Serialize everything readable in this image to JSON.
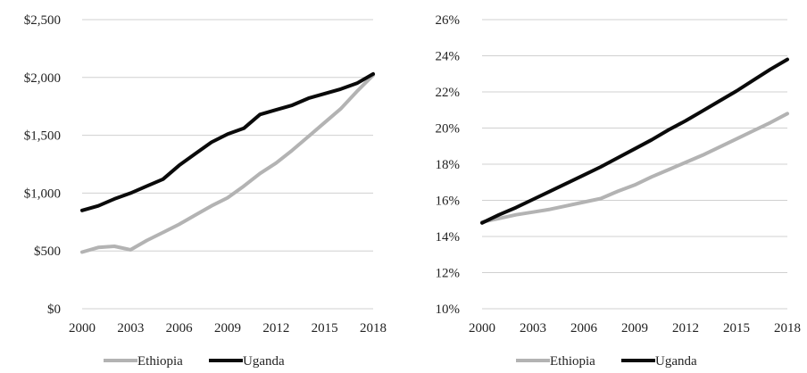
{
  "chart_data": [
    {
      "type": "line",
      "x": [
        2000,
        2001,
        2002,
        2003,
        2004,
        2005,
        2006,
        2007,
        2008,
        2009,
        2010,
        2011,
        2012,
        2013,
        2014,
        2015,
        2016,
        2017,
        2018
      ],
      "x_ticks": [
        "2000",
        "2003",
        "2006",
        "2009",
        "2012",
        "2015",
        "2018"
      ],
      "y_ticks": [
        "$0",
        "$500",
        "$1,000",
        "$1,500",
        "$2,000",
        "$2,500"
      ],
      "ylim": [
        0,
        2500
      ],
      "grid": true,
      "legend_position": "bottom",
      "series": [
        {
          "name": "Ethiopia",
          "color": "#b3b3b3",
          "values": [
            490,
            530,
            540,
            510,
            590,
            660,
            730,
            810,
            890,
            960,
            1060,
            1170,
            1260,
            1370,
            1490,
            1610,
            1730,
            1880,
            2020
          ]
        },
        {
          "name": "Uganda",
          "color": "#0a0a0a",
          "values": [
            850,
            890,
            950,
            1000,
            1060,
            1120,
            1240,
            1340,
            1440,
            1510,
            1560,
            1680,
            1720,
            1760,
            1820,
            1860,
            1900,
            1950,
            2030
          ]
        }
      ]
    },
    {
      "type": "line",
      "x": [
        2000,
        2001,
        2002,
        2003,
        2004,
        2005,
        2006,
        2007,
        2008,
        2009,
        2010,
        2011,
        2012,
        2013,
        2014,
        2015,
        2016,
        2017,
        2018
      ],
      "x_ticks": [
        "2000",
        "2003",
        "2006",
        "2009",
        "2012",
        "2015",
        "2018"
      ],
      "y_ticks": [
        "10%",
        "12%",
        "14%",
        "16%",
        "18%",
        "20%",
        "22%",
        "24%",
        "26%"
      ],
      "ylim": [
        10,
        26
      ],
      "grid": true,
      "legend_position": "bottom",
      "series": [
        {
          "name": "Ethiopia",
          "color": "#b3b3b3",
          "values": [
            14.8,
            15.0,
            15.2,
            15.35,
            15.5,
            15.7,
            15.9,
            16.1,
            16.5,
            16.85,
            17.3,
            17.7,
            18.1,
            18.5,
            18.95,
            19.4,
            19.85,
            20.3,
            20.8
          ]
        },
        {
          "name": "Uganda",
          "color": "#0a0a0a",
          "values": [
            14.75,
            15.2,
            15.6,
            16.05,
            16.5,
            16.95,
            17.4,
            17.85,
            18.35,
            18.85,
            19.35,
            19.9,
            20.4,
            20.95,
            21.5,
            22.05,
            22.65,
            23.25,
            23.8
          ]
        }
      ]
    }
  ]
}
